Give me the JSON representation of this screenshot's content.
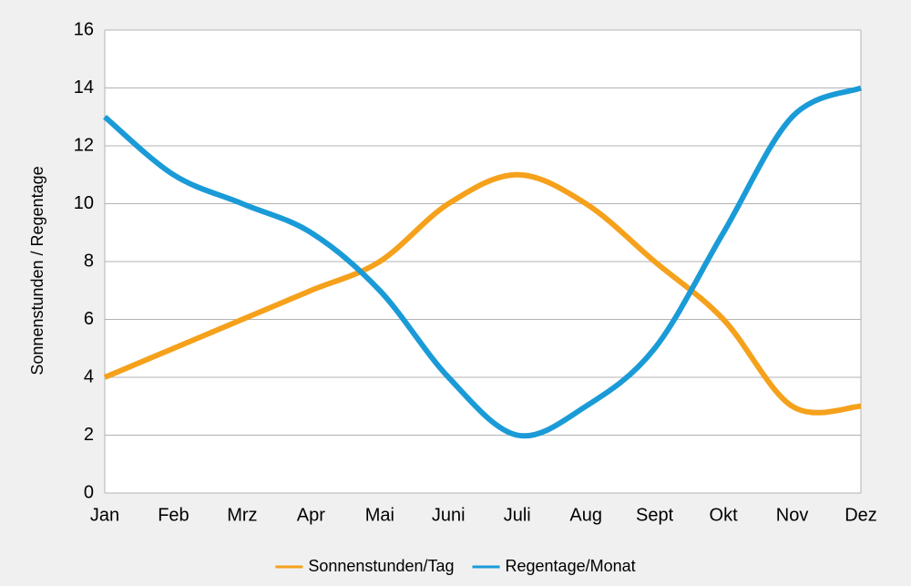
{
  "chart_data": {
    "type": "line",
    "y_label": "Sonnenstunden / Regentage",
    "categories": [
      "Jan",
      "Feb",
      "Mrz",
      "Apr",
      "Mai",
      "Juni",
      "Juli",
      "Aug",
      "Sept",
      "Okt",
      "Nov",
      "Dez"
    ],
    "series": [
      {
        "name": "Sonnenstunden/Tag",
        "color": "#f5a11c",
        "values": [
          4,
          5,
          6,
          7,
          8,
          10,
          11,
          10,
          8,
          6,
          3,
          3
        ]
      },
      {
        "name": "Regentage/Monat",
        "color": "#1a9bd7",
        "values": [
          13,
          11,
          10,
          9,
          7,
          4,
          2,
          3,
          5,
          9,
          13,
          14
        ]
      }
    ],
    "ylim": [
      0,
      16
    ],
    "yticks": [
      0,
      2,
      4,
      6,
      8,
      10,
      12,
      14,
      16
    ],
    "grid": true,
    "smooth": true,
    "legend": "bottom"
  }
}
